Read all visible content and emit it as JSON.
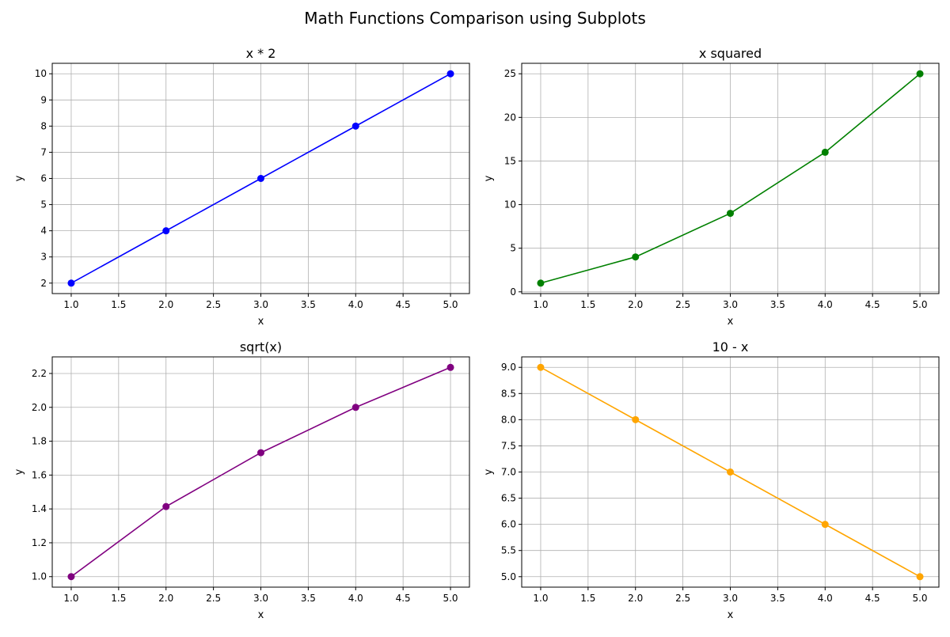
{
  "figure": {
    "suptitle": "Math Functions Comparison using Subplots"
  },
  "chart_data": [
    {
      "type": "line",
      "title": "x * 2",
      "xlabel": "x",
      "ylabel": "y",
      "x": [
        1,
        2,
        3,
        4,
        5
      ],
      "series": [
        {
          "values": [
            2,
            4,
            6,
            8,
            10
          ],
          "color": "#0000ff",
          "marker": "circle"
        }
      ],
      "xlim": [
        0.8,
        5.2
      ],
      "ylim": [
        1.6,
        10.4
      ],
      "xticks": [
        1.0,
        1.5,
        2.0,
        2.5,
        3.0,
        3.5,
        4.0,
        4.5,
        5.0
      ],
      "xtick_labels": [
        "1.0",
        "1.5",
        "2.0",
        "2.5",
        "3.0",
        "3.5",
        "4.0",
        "4.5",
        "5.0"
      ],
      "yticks": [
        2,
        3,
        4,
        5,
        6,
        7,
        8,
        9,
        10
      ],
      "ytick_labels": [
        "2",
        "3",
        "4",
        "5",
        "6",
        "7",
        "8",
        "9",
        "10"
      ],
      "grid": true
    },
    {
      "type": "line",
      "title": "x squared",
      "xlabel": "x",
      "ylabel": "y",
      "x": [
        1,
        2,
        3,
        4,
        5
      ],
      "series": [
        {
          "values": [
            1,
            4,
            9,
            16,
            25
          ],
          "color": "#008000",
          "marker": "circle"
        }
      ],
      "xlim": [
        0.8,
        5.2
      ],
      "ylim": [
        -0.2,
        26.2
      ],
      "xticks": [
        1.0,
        1.5,
        2.0,
        2.5,
        3.0,
        3.5,
        4.0,
        4.5,
        5.0
      ],
      "xtick_labels": [
        "1.0",
        "1.5",
        "2.0",
        "2.5",
        "3.0",
        "3.5",
        "4.0",
        "4.5",
        "5.0"
      ],
      "yticks": [
        0,
        5,
        10,
        15,
        20,
        25
      ],
      "ytick_labels": [
        "0",
        "5",
        "10",
        "15",
        "20",
        "25"
      ],
      "grid": true
    },
    {
      "type": "line",
      "title": "sqrt(x)",
      "xlabel": "x",
      "ylabel": "y",
      "x": [
        1,
        2,
        3,
        4,
        5
      ],
      "series": [
        {
          "values": [
            1.0,
            1.414,
            1.732,
            2.0,
            2.236
          ],
          "color": "#800080",
          "marker": "circle"
        }
      ],
      "xlim": [
        0.8,
        5.2
      ],
      "ylim": [
        0.938,
        2.298
      ],
      "xticks": [
        1.0,
        1.5,
        2.0,
        2.5,
        3.0,
        3.5,
        4.0,
        4.5,
        5.0
      ],
      "xtick_labels": [
        "1.0",
        "1.5",
        "2.0",
        "2.5",
        "3.0",
        "3.5",
        "4.0",
        "4.5",
        "5.0"
      ],
      "yticks": [
        1.0,
        1.2,
        1.4,
        1.6,
        1.8,
        2.0,
        2.2
      ],
      "ytick_labels": [
        "1.0",
        "1.2",
        "1.4",
        "1.6",
        "1.8",
        "2.0",
        "2.2"
      ],
      "grid": true
    },
    {
      "type": "line",
      "title": "10 - x",
      "xlabel": "x",
      "ylabel": "y",
      "x": [
        1,
        2,
        3,
        4,
        5
      ],
      "series": [
        {
          "values": [
            9,
            8,
            7,
            6,
            5
          ],
          "color": "#ffa500",
          "marker": "circle"
        }
      ],
      "xlim": [
        0.8,
        5.2
      ],
      "ylim": [
        4.8,
        9.2
      ],
      "xticks": [
        1.0,
        1.5,
        2.0,
        2.5,
        3.0,
        3.5,
        4.0,
        4.5,
        5.0
      ],
      "xtick_labels": [
        "1.0",
        "1.5",
        "2.0",
        "2.5",
        "3.0",
        "3.5",
        "4.0",
        "4.5",
        "5.0"
      ],
      "yticks": [
        5.0,
        5.5,
        6.0,
        6.5,
        7.0,
        7.5,
        8.0,
        8.5,
        9.0
      ],
      "ytick_labels": [
        "5.0",
        "5.5",
        "6.0",
        "6.5",
        "7.0",
        "7.5",
        "8.0",
        "8.5",
        "9.0"
      ],
      "grid": true
    }
  ]
}
